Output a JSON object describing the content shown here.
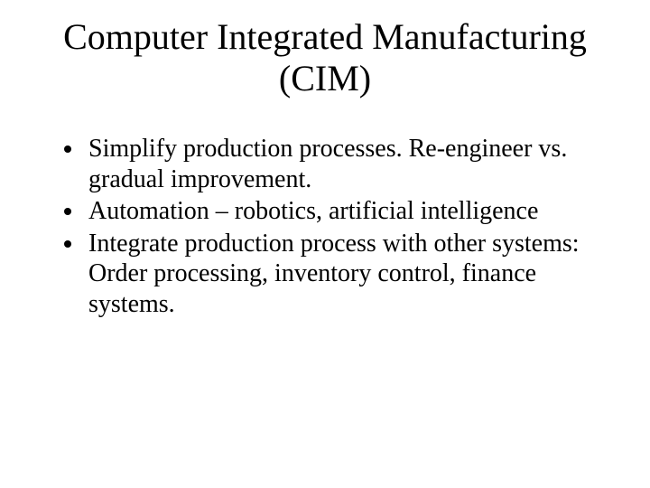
{
  "slide": {
    "title_line1": "Computer Integrated Manufacturing",
    "title_line2": "(CIM)",
    "bullets": [
      "Simplify production processes.  Re-engineer vs. gradual improvement.",
      "Automation – robotics, artificial intelligence",
      "Integrate production process with other systems: Order processing, inventory control, finance systems."
    ],
    "style": {
      "background_color": "#ffffff",
      "text_color": "#000000",
      "font_family": "Times New Roman",
      "title_fontsize_pt": 40,
      "body_fontsize_pt": 28,
      "bullet_marker": "disc"
    }
  }
}
